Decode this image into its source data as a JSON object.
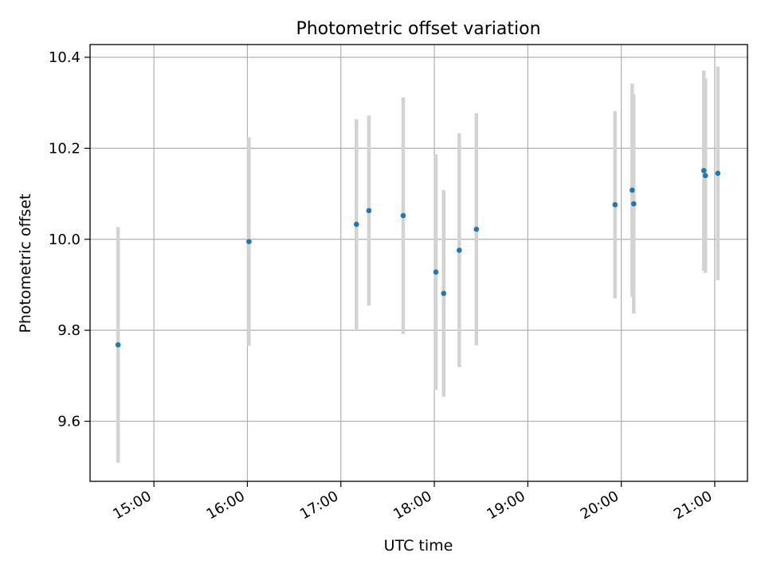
{
  "chart_data": {
    "type": "scatter",
    "title": "Photometric offset variation",
    "xlabel": "UTC time",
    "ylabel": "Photometric offset",
    "x_axis_type": "time",
    "xlim": [
      "14:19",
      "21:21"
    ],
    "ylim": [
      9.468,
      10.428
    ],
    "x_ticks": [
      "15:00",
      "16:00",
      "17:00",
      "18:00",
      "19:00",
      "20:00",
      "21:00"
    ],
    "y_ticks": [
      9.6,
      9.8,
      10.0,
      10.2,
      10.4
    ],
    "y_tick_labels": [
      "9.6",
      "9.8",
      "10.0",
      "10.2",
      "10.4"
    ],
    "grid": true,
    "legend": "none",
    "colors": {
      "marker": "#1f77b4",
      "errorbar": "#d3d3d3",
      "grid": "#b0b0b0"
    },
    "series": [
      {
        "points": [
          {
            "x": "14:37",
            "y": 9.768,
            "err": 0.259
          },
          {
            "x": "16:01",
            "y": 9.995,
            "err": 0.229
          },
          {
            "x": "17:10",
            "y": 10.033,
            "err": 0.231
          },
          {
            "x": "17:18",
            "y": 10.063,
            "err": 0.209
          },
          {
            "x": "17:40",
            "y": 10.052,
            "err": 0.26
          },
          {
            "x": "18:01",
            "y": 9.928,
            "err": 0.259
          },
          {
            "x": "18:06",
            "y": 9.881,
            "err": 0.227
          },
          {
            "x": "18:16",
            "y": 9.976,
            "err": 0.257
          },
          {
            "x": "18:27",
            "y": 10.022,
            "err": 0.255
          },
          {
            "x": "19:56",
            "y": 10.076,
            "err": 0.206
          },
          {
            "x": "20:07",
            "y": 10.108,
            "err": 0.234
          },
          {
            "x": "20:08",
            "y": 10.078,
            "err": 0.241
          },
          {
            "x": "20:53",
            "y": 10.151,
            "err": 0.22
          },
          {
            "x": "20:54",
            "y": 10.14,
            "err": 0.214
          },
          {
            "x": "21:02",
            "y": 10.145,
            "err": 0.235
          }
        ]
      }
    ]
  }
}
